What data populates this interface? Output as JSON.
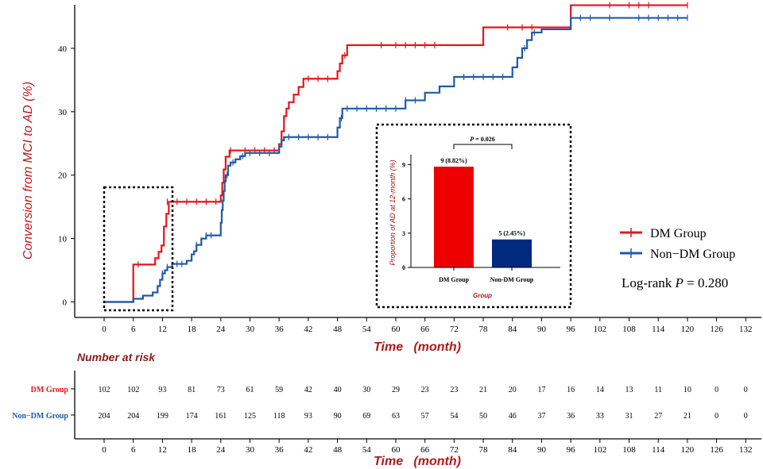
{
  "chart_data": [
    {
      "type": "line",
      "subtype": "kaplan-meier-cumulative-incidence",
      "ylabel": "Conversion from MCI to AD (%)",
      "xlabel": "Time   (month)",
      "ylim": [
        -1,
        47
      ],
      "xlim": [
        -6,
        134
      ],
      "y_ticks": [
        0,
        10,
        20,
        30,
        40
      ],
      "x_ticks": [
        0,
        6,
        12,
        18,
        24,
        30,
        36,
        42,
        48,
        54,
        60,
        66,
        72,
        78,
        84,
        90,
        96,
        102,
        108,
        114,
        120,
        126,
        132
      ],
      "legend": {
        "placement": "right",
        "entries": [
          "DM Group",
          "Non−DM Group"
        ],
        "logrank_prefix": "Log-rank ",
        "logrank_p_symbol": "P",
        "logrank_value": " = 0.280"
      },
      "series": [
        {
          "name": "DM Group",
          "color": "#e8141b",
          "steps": [
            [
              0,
              0
            ],
            [
              6,
              5.9
            ],
            [
              10.5,
              6.9
            ],
            [
              11.2,
              7.9
            ],
            [
              11.8,
              8.9
            ],
            [
              12.3,
              11.9
            ],
            [
              12.8,
              13.9
            ],
            [
              13.3,
              15.8
            ],
            [
              24,
              16.8
            ],
            [
              24.3,
              18.8
            ],
            [
              24.6,
              20.9
            ],
            [
              25,
              22.9
            ],
            [
              25.8,
              23.9
            ],
            [
              36,
              24.9
            ],
            [
              36.5,
              26.9
            ],
            [
              37,
              29.3
            ],
            [
              37.5,
              30.5
            ],
            [
              38,
              31.5
            ],
            [
              39,
              32.7
            ],
            [
              40,
              33.9
            ],
            [
              41,
              35.2
            ],
            [
              48,
              36.4
            ],
            [
              48.5,
              37.6
            ],
            [
              49,
              38.9
            ],
            [
              50,
              40.5
            ],
            [
              78,
              43.3
            ],
            [
              96,
              46.8
            ]
          ],
          "censor": [
            [
              7,
              5.9
            ],
            [
              13,
              15.8
            ],
            [
              15,
              15.8
            ],
            [
              17,
              15.8
            ],
            [
              19,
              15.8
            ],
            [
              21,
              15.8
            ],
            [
              23,
              15.8
            ],
            [
              26,
              23.9
            ],
            [
              29,
              23.9
            ],
            [
              31,
              23.9
            ],
            [
              33,
              23.9
            ],
            [
              35,
              23.9
            ],
            [
              42,
              35.2
            ],
            [
              44,
              35.2
            ],
            [
              46,
              35.2
            ],
            [
              49.5,
              38.9
            ],
            [
              57,
              40.5
            ],
            [
              60,
              40.5
            ],
            [
              62,
              40.5
            ],
            [
              64,
              40.5
            ],
            [
              66,
              40.5
            ],
            [
              68,
              40.5
            ],
            [
              83,
              43.3
            ],
            [
              86,
              43.3
            ],
            [
              88,
              43.3
            ],
            [
              104,
              46.8
            ],
            [
              108,
              46.8
            ],
            [
              110,
              46.8
            ],
            [
              112,
              46.8
            ],
            [
              120,
              46.8
            ]
          ],
          "end_x": 120
        },
        {
          "name": "Non−DM Group",
          "color": "#1f5aa8",
          "steps": [
            [
              0,
              0
            ],
            [
              6,
              0.5
            ],
            [
              8,
              1
            ],
            [
              10,
              1.5
            ],
            [
              11,
              2.5
            ],
            [
              11.5,
              3.5
            ],
            [
              12,
              4.5
            ],
            [
              12.5,
              5
            ],
            [
              13,
              5.5
            ],
            [
              14,
              6
            ],
            [
              17,
              6.5
            ],
            [
              18,
              7.5
            ],
            [
              18.5,
              8
            ],
            [
              19,
              9
            ],
            [
              20,
              10
            ],
            [
              21,
              10.5
            ],
            [
              24,
              12.5
            ],
            [
              24.2,
              14.5
            ],
            [
              24.4,
              16
            ],
            [
              24.6,
              17.5
            ],
            [
              24.8,
              19
            ],
            [
              25,
              20
            ],
            [
              25.5,
              21.5
            ],
            [
              26,
              22
            ],
            [
              27,
              22.5
            ],
            [
              28,
              23
            ],
            [
              29,
              23.5
            ],
            [
              36,
              24.5
            ],
            [
              36.5,
              25.5
            ],
            [
              37,
              26
            ],
            [
              48,
              27.5
            ],
            [
              48.5,
              29
            ],
            [
              49,
              30.5
            ],
            [
              62,
              31.8
            ],
            [
              66,
              33
            ],
            [
              69,
              34
            ],
            [
              72,
              35.5
            ],
            [
              84,
              37
            ],
            [
              85,
              38.5
            ],
            [
              86,
              40
            ],
            [
              87,
              41.3
            ],
            [
              88,
              42.5
            ],
            [
              90,
              43
            ],
            [
              96,
              44.8
            ]
          ],
          "censor": [
            [
              12,
              4.5
            ],
            [
              13,
              5.5
            ],
            [
              15,
              6
            ],
            [
              16,
              6
            ],
            [
              19,
              9
            ],
            [
              21,
              10.5
            ],
            [
              22,
              10.5
            ],
            [
              25.3,
              20
            ],
            [
              26.5,
              22
            ],
            [
              28.5,
              23
            ],
            [
              30,
              23.5
            ],
            [
              32,
              23.5
            ],
            [
              34,
              23.5
            ],
            [
              38,
              26
            ],
            [
              40,
              26
            ],
            [
              42,
              26
            ],
            [
              44,
              26
            ],
            [
              46,
              26
            ],
            [
              48.8,
              29
            ],
            [
              50,
              30.5
            ],
            [
              52,
              30.5
            ],
            [
              54,
              30.5
            ],
            [
              56,
              30.5
            ],
            [
              58,
              30.5
            ],
            [
              60,
              30.5
            ],
            [
              62,
              31.8
            ],
            [
              64,
              31.8
            ],
            [
              74,
              35.5
            ],
            [
              76,
              35.5
            ],
            [
              78,
              35.5
            ],
            [
              80,
              35.5
            ],
            [
              82,
              35.5
            ],
            [
              86.5,
              40
            ],
            [
              88.5,
              42.5
            ],
            [
              98,
              44.8
            ],
            [
              100,
              44.8
            ],
            [
              104,
              44.8
            ],
            [
              110,
              44.8
            ],
            [
              112,
              44.8
            ],
            [
              114,
              44.8
            ],
            [
              116,
              44.8
            ],
            [
              118,
              44.8
            ],
            [
              120,
              44.8
            ]
          ],
          "end_x": 120
        }
      ]
    },
    {
      "type": "bar",
      "title": "",
      "ylabel": "Proportion of AD at 12-month (%)",
      "xlabel": "Group",
      "ylim": [
        0,
        9.5
      ],
      "y_ticks": [
        0,
        3,
        6,
        9
      ],
      "categories": [
        "DM Group",
        "Non-DM Group"
      ],
      "values": [
        8.82,
        2.45
      ],
      "data_labels": [
        "9 (8.82%)",
        "5 (2.45%)"
      ],
      "colors": [
        "#ee0000",
        "#002a80"
      ],
      "annotation_p_symbol": "P",
      "annotation_p_value": " = 0.026"
    },
    {
      "type": "table",
      "title": "Number at risk",
      "xlabel": "Time   (month)",
      "x_ticks": [
        0,
        6,
        12,
        18,
        24,
        30,
        36,
        42,
        48,
        54,
        60,
        66,
        72,
        78,
        84,
        90,
        96,
        102,
        108,
        114,
        120,
        126,
        132
      ],
      "rows": [
        {
          "label": "DM Group",
          "color": "#e8141b",
          "values": [
            102,
            102,
            93,
            81,
            73,
            61,
            59,
            42,
            40,
            30,
            29,
            23,
            23,
            21,
            20,
            17,
            16,
            14,
            13,
            11,
            10,
            0,
            0
          ]
        },
        {
          "label": "Non−DM Group",
          "color": "#1f5aa8",
          "values": [
            204,
            204,
            199,
            174,
            161,
            125,
            118,
            93,
            90,
            69,
            63,
            57,
            54,
            50,
            46,
            37,
            36,
            33,
            31,
            27,
            21,
            0,
            0
          ]
        }
      ]
    }
  ]
}
